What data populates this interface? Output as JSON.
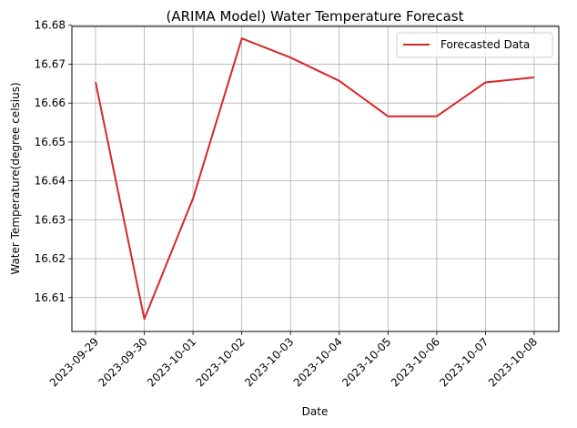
{
  "chart_data": {
    "type": "line",
    "title": "(ARIMA Model) Water Temperature Forecast",
    "xlabel": "Date",
    "ylabel": "Water Temperature(degree celsius)",
    "x": [
      "2023-09-29",
      "2023-09-30",
      "2023-10-01",
      "2023-10-02",
      "2023-10-03",
      "2023-10-04",
      "2023-10-05",
      "2023-10-06",
      "2023-10-07",
      "2023-10-08"
    ],
    "series": [
      {
        "name": "Forecasted Data",
        "color": "#d62728",
        "values": [
          16.6654,
          16.6045,
          16.6355,
          16.6766,
          16.6717,
          16.6657,
          16.6566,
          16.6566,
          16.6653,
          16.6666
        ]
      }
    ],
    "yticks": [
      "16.61",
      "16.62",
      "16.63",
      "16.64",
      "16.65",
      "16.66",
      "16.67",
      "16.68"
    ],
    "ylim": [
      16.6013,
      16.6797
    ],
    "grid": true,
    "legend": "top-right"
  }
}
